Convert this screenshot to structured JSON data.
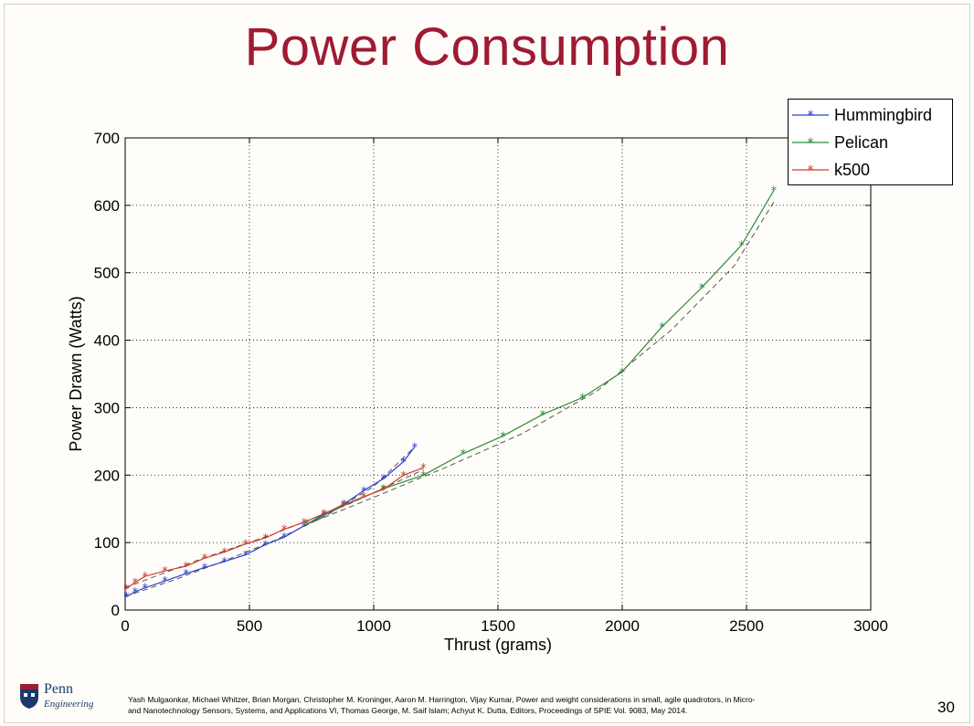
{
  "slide": {
    "title": "Power Consumption",
    "page_number": "30",
    "logo": {
      "line1": "Penn",
      "line2": "Engineering"
    },
    "citation_lines": [
      "Yash Mulgaonkar, Michael Whitzer, Brian Morgan, Christopher M. Kroninger, Aaron M. Harrington, Vijay Kumar, Power and weight considerations in small, agile quadrotors, in Micro-",
      "and Nanotechnology Sensors, Systems, and Applications VI, Thomas George, M. Saif Islam; Achyut K. Dutta, Editors, Proceedings of SPIE Vol. 9083, May 2014."
    ]
  },
  "chart_data": {
    "type": "line",
    "title": "Power Consumption",
    "xlabel": "Thrust (grams)",
    "ylabel": "Power Drawn (Watts)",
    "xlim": [
      0,
      3000
    ],
    "ylim": [
      0,
      700
    ],
    "xticks": [
      0,
      500,
      1000,
      1500,
      2000,
      2500,
      3000
    ],
    "yticks": [
      0,
      100,
      200,
      300,
      400,
      500,
      600,
      700
    ],
    "grid": true,
    "legend_position": "top-right",
    "series": [
      {
        "name": "Hummingbird",
        "color": "#2b3fd0",
        "marker": "*",
        "x": [
          5,
          40,
          80,
          160,
          245,
          320,
          400,
          485,
          565,
          640,
          720,
          800,
          880,
          960,
          1040,
          1120,
          1165
        ],
        "y": [
          20,
          27,
          33,
          43,
          54,
          63,
          72,
          82,
          97,
          108,
          125,
          142,
          157,
          177,
          195,
          220,
          242
        ],
        "fit": {
          "x": [
            0,
            200,
            400,
            600,
            800,
            1000,
            1165
          ],
          "y": [
            20,
            45,
            73,
            103,
            138,
            183,
            242
          ]
        }
      },
      {
        "name": "Pelican",
        "color": "#2e8b3a",
        "marker": "*",
        "x": [
          730,
          880,
          1040,
          1200,
          1360,
          1520,
          1680,
          1840,
          2000,
          2160,
          2320,
          2480,
          2610
        ],
        "y": [
          127,
          155,
          180,
          200,
          232,
          258,
          290,
          315,
          353,
          420,
          478,
          541,
          622
        ],
        "fit": {
          "x": [
            730,
            1000,
            1300,
            1600,
            1900,
            2200,
            2450,
            2610
          ],
          "y": [
            127,
            167,
            213,
            262,
            325,
            416,
            510,
            605
          ]
        }
      },
      {
        "name": "k500",
        "color": "#d13b2e",
        "marker": "*",
        "x": [
          5,
          40,
          80,
          160,
          245,
          320,
          400,
          485,
          565,
          640,
          720,
          800,
          880,
          960,
          1040,
          1120,
          1200
        ],
        "y": [
          32,
          41,
          50,
          58,
          65,
          77,
          86,
          98,
          107,
          120,
          130,
          143,
          156,
          168,
          179,
          200,
          211
        ],
        "fit": {
          "x": [
            0,
            300,
            600,
            900,
            1200
          ],
          "y": [
            33,
            75,
            113,
            157,
            208
          ]
        }
      }
    ]
  }
}
